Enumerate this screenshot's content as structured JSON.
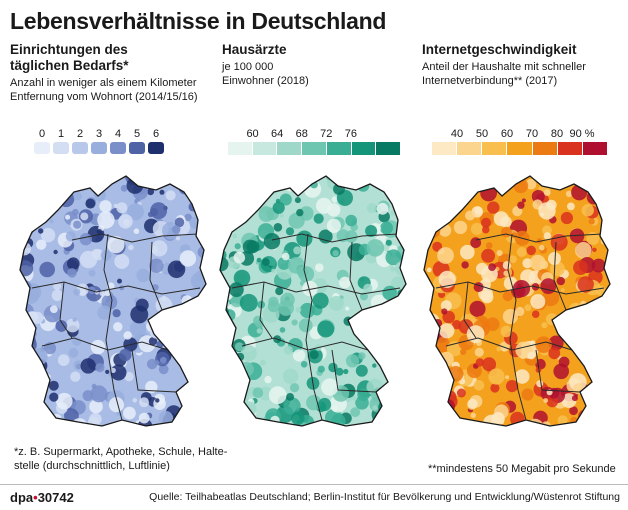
{
  "title": "Lebensverhältnisse in Deutschland",
  "panels": [
    {
      "title_l1": "Einrichtungen des",
      "title_l2": "täglichen Bedarfs*",
      "sub_l1": "Anzahl  in weniger als einem Kilometer",
      "sub_l2": "Entfernung vom Wohnort (2014/15/16)",
      "legend_ticks": [
        "0",
        "1",
        "2",
        "3",
        "4",
        "5",
        "6"
      ],
      "legend_colors": [
        "#e8eef9",
        "#d3def3",
        "#b7c8eb",
        "#98aedd",
        "#7a8fca",
        "#4f62a6",
        "#1e2f6e"
      ]
    },
    {
      "title_l1": "Hausärzte",
      "sub_l1": "je 100 000",
      "sub_l2": "Einwohner (2018)",
      "legend_ticks": [
        "60",
        "64",
        "68",
        "72",
        "76"
      ],
      "legend_colors": [
        "#e6f4f0",
        "#c6e8df",
        "#9fd8c9",
        "#6ec6b0",
        "#3aae95",
        "#14957a",
        "#087a63"
      ]
    },
    {
      "title_l1": "Internetgeschwindigkeit",
      "sub_l1": "Anteil der Haushalte mit schneller",
      "sub_l2": "Internetverbindung** (2017)",
      "legend_ticks": [
        "40",
        "50",
        "60",
        "70",
        "80",
        "90 %"
      ],
      "legend_colors": [
        "#fde9c4",
        "#fbd58e",
        "#f8bf4f",
        "#f4a21e",
        "#ec7a12",
        "#d9331f",
        "#b01030"
      ]
    }
  ],
  "footnote1_l1": "*z. B. Supermarkt, Apotheke, Schule, Halte-",
  "footnote1_l2": "stelle (durchschnittlich, Luftlinie)",
  "footnote2": "**mindestens 50 Megabit pro Sekunde",
  "footer": {
    "logo_text": "dpa",
    "logo_dot": "•",
    "logo_num": "30742",
    "source": "Quelle: Teilhabeatlas Deutschland; Berlin-Institut für Bevölkerung und Entwicklung/Wüstenrot Stiftung"
  },
  "map_styles": [
    {
      "base": "#a9bce6",
      "dots": [
        "#d3def3",
        "#98aedd",
        "#7a8fca",
        "#4f62a6",
        "#1e2f6e",
        "#e8eef9"
      ]
    },
    {
      "base": "#b2e0d4",
      "dots": [
        "#e6f4f0",
        "#9fd8c9",
        "#6ec6b0",
        "#3aae95",
        "#14957a",
        "#087a63"
      ]
    },
    {
      "base": "#f4a21e",
      "dots": [
        "#fbd58e",
        "#f8bf4f",
        "#ec7a12",
        "#d9331f",
        "#b01030",
        "#fde9c4"
      ]
    }
  ]
}
